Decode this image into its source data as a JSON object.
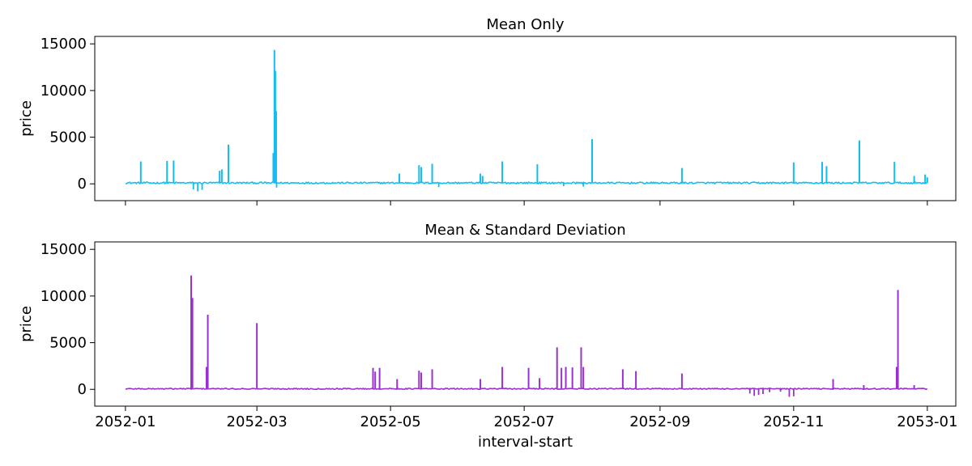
{
  "chart_data": [
    {
      "type": "line",
      "title": "Mean Only",
      "xlabel": "",
      "ylabel": "price",
      "color": "#12bdf2",
      "ylim": [
        -1800,
        15800
      ],
      "xlim_days": [
        -14,
        379
      ],
      "yticks": [
        0,
        5000,
        10000,
        15000
      ],
      "ytick_labels": [
        "0",
        "5000",
        "10000",
        "15000"
      ],
      "x_ticks": [
        {
          "day": 0,
          "label": "2052-01"
        },
        {
          "day": 60,
          "label": "2052-03"
        },
        {
          "day": 121,
          "label": "2052-05"
        },
        {
          "day": 182,
          "label": "2052-07"
        },
        {
          "day": 244,
          "label": "2052-09"
        },
        {
          "day": 305,
          "label": "2052-11"
        },
        {
          "day": 366,
          "label": "2053-01"
        }
      ],
      "show_xtick_labels": false,
      "baseline": 100,
      "noise_band": 180,
      "dips": [
        {
          "day": 31,
          "value": -600
        },
        {
          "day": 33,
          "value": -800
        },
        {
          "day": 35,
          "value": -650
        },
        {
          "day": 69,
          "value": -400
        },
        {
          "day": 143,
          "value": -350
        },
        {
          "day": 200,
          "value": -250
        },
        {
          "day": 209,
          "value": -300
        }
      ],
      "spikes": [
        {
          "day": 7,
          "value": 2400
        },
        {
          "day": 19,
          "value": 2450
        },
        {
          "day": 22,
          "value": 2500
        },
        {
          "day": 43,
          "value": 1400
        },
        {
          "day": 44,
          "value": 1550
        },
        {
          "day": 47,
          "value": 4200
        },
        {
          "day": 68,
          "value": 14350
        },
        {
          "day": 68.4,
          "value": 12100
        },
        {
          "day": 68.8,
          "value": 7800
        },
        {
          "day": 67.5,
          "value": 3300
        },
        {
          "day": 125,
          "value": 1100
        },
        {
          "day": 134,
          "value": 2000
        },
        {
          "day": 135,
          "value": 1800
        },
        {
          "day": 140,
          "value": 2150
        },
        {
          "day": 162,
          "value": 1100
        },
        {
          "day": 163,
          "value": 850
        },
        {
          "day": 172,
          "value": 2400
        },
        {
          "day": 188,
          "value": 2100
        },
        {
          "day": 213,
          "value": 4800
        },
        {
          "day": 254,
          "value": 1700
        },
        {
          "day": 305,
          "value": 2300
        },
        {
          "day": 318,
          "value": 2350
        },
        {
          "day": 320,
          "value": 1900
        },
        {
          "day": 335,
          "value": 4650
        },
        {
          "day": 351,
          "value": 2350
        },
        {
          "day": 360,
          "value": 850
        },
        {
          "day": 365,
          "value": 1000
        },
        {
          "day": 366,
          "value": 700
        }
      ]
    },
    {
      "type": "line",
      "title": "Mean & Standard Deviation",
      "xlabel": "interval-start",
      "ylabel": "price",
      "color": "#9932cc",
      "ylim": [
        -1800,
        15800
      ],
      "xlim_days": [
        -14,
        379
      ],
      "yticks": [
        0,
        5000,
        10000,
        15000
      ],
      "ytick_labels": [
        "0",
        "5000",
        "10000",
        "15000"
      ],
      "x_ticks": [
        {
          "day": 0,
          "label": "2052-01"
        },
        {
          "day": 60,
          "label": "2052-03"
        },
        {
          "day": 121,
          "label": "2052-05"
        },
        {
          "day": 182,
          "label": "2052-07"
        },
        {
          "day": 244,
          "label": "2052-09"
        },
        {
          "day": 305,
          "label": "2052-11"
        },
        {
          "day": 366,
          "label": "2053-01"
        }
      ],
      "show_xtick_labels": true,
      "baseline": 60,
      "noise_band": 120,
      "dips": [
        {
          "day": 285,
          "value": -450
        },
        {
          "day": 287,
          "value": -700
        },
        {
          "day": 289,
          "value": -600
        },
        {
          "day": 291,
          "value": -500
        },
        {
          "day": 294,
          "value": -300
        },
        {
          "day": 299,
          "value": -250
        },
        {
          "day": 303,
          "value": -800
        },
        {
          "day": 305,
          "value": -750
        }
      ],
      "spikes": [
        {
          "day": 30,
          "value": 12200
        },
        {
          "day": 30.6,
          "value": 9800
        },
        {
          "day": 37,
          "value": 2400
        },
        {
          "day": 37.6,
          "value": 8000
        },
        {
          "day": 60,
          "value": 7100
        },
        {
          "day": 113,
          "value": 2300
        },
        {
          "day": 114,
          "value": 1900
        },
        {
          "day": 116,
          "value": 2300
        },
        {
          "day": 124,
          "value": 1100
        },
        {
          "day": 134,
          "value": 2000
        },
        {
          "day": 135,
          "value": 1800
        },
        {
          "day": 140,
          "value": 2150
        },
        {
          "day": 162,
          "value": 1100
        },
        {
          "day": 172,
          "value": 2400
        },
        {
          "day": 184,
          "value": 2300
        },
        {
          "day": 189,
          "value": 1200
        },
        {
          "day": 197,
          "value": 4500
        },
        {
          "day": 199,
          "value": 2300
        },
        {
          "day": 201,
          "value": 2400
        },
        {
          "day": 204,
          "value": 2350
        },
        {
          "day": 208,
          "value": 4500
        },
        {
          "day": 209,
          "value": 2400
        },
        {
          "day": 227,
          "value": 2150
        },
        {
          "day": 233,
          "value": 1950
        },
        {
          "day": 254,
          "value": 1700
        },
        {
          "day": 323,
          "value": 1100
        },
        {
          "day": 337,
          "value": 450
        },
        {
          "day": 352,
          "value": 2400
        },
        {
          "day": 352.6,
          "value": 10650
        },
        {
          "day": 360,
          "value": 450
        }
      ]
    }
  ]
}
